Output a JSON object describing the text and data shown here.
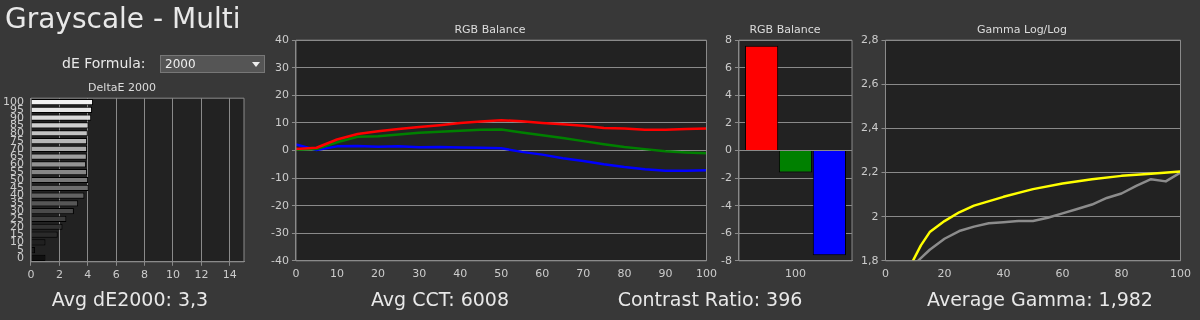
{
  "chart_data": [
    {
      "type": "bar",
      "orientation": "horizontal",
      "title": "DeltaE 2000",
      "annotations": [
        "Grayscale - Multi",
        "dE Formula:",
        "2000",
        "Avg dE2000: 3,3"
      ],
      "categories": [
        "100",
        "95",
        "90",
        "85",
        "80",
        "75",
        "70",
        "65",
        "60",
        "55",
        "50",
        "45",
        "40",
        "35",
        "30",
        "25",
        "20",
        "15",
        "10",
        "5",
        "0"
      ],
      "values": [
        4.37,
        4.3,
        4.24,
        4.05,
        4.0,
        3.95,
        3.95,
        3.93,
        3.88,
        3.95,
        4.02,
        4.05,
        3.76,
        3.32,
        3.02,
        2.49,
        2.22,
        1.88,
        1.02,
        0.29,
        1.02
      ],
      "colors": [
        "#f2f2f2",
        "#e6e6e6",
        "#dadada",
        "#cecece",
        "#c2c2c2",
        "#b6b6b6",
        "#aaaaaa",
        "#9e9e9e",
        "#929292",
        "#868686",
        "#7a7a7a",
        "#6e6e6e",
        "#626262",
        "#565656",
        "#4a4a4a",
        "#3e3e3e",
        "#323232",
        "#2a2a2a",
        "#202020",
        "#181818",
        "#101010"
      ],
      "xlim": [
        0,
        15
      ],
      "xticks": [
        0,
        2,
        4,
        6,
        8,
        10,
        12,
        14
      ],
      "grid": "x",
      "legend": false
    },
    {
      "type": "line",
      "title": "RGB Balance",
      "annotations": [
        "Avg CCT: 6008"
      ],
      "x": [
        0,
        5,
        10,
        15,
        20,
        25,
        30,
        35,
        40,
        45,
        50,
        55,
        60,
        65,
        70,
        75,
        80,
        85,
        90,
        95,
        100
      ],
      "series": [
        {
          "color": "#ff0000",
          "values": [
            0.5,
            1,
            4,
            6,
            7,
            7.8,
            8.5,
            9.2,
            10,
            10.5,
            11,
            10.6,
            10,
            9.5,
            9,
            8.2,
            8,
            7.5,
            7.5,
            7.8,
            8
          ]
        },
        {
          "color": "#008000",
          "values": [
            0.3,
            0.5,
            3,
            5,
            5.2,
            5.8,
            6.4,
            6.8,
            7.2,
            7.5,
            7.6,
            6.5,
            5.5,
            4.5,
            3.4,
            2.3,
            1.3,
            0.5,
            -0.3,
            -0.7,
            -1
          ]
        },
        {
          "color": "#0000ff",
          "values": [
            2.2,
            0.2,
            1.5,
            1.6,
            1.4,
            1.5,
            1.2,
            1.3,
            1.1,
            1,
            0.8,
            -0.5,
            -1.5,
            -2.8,
            -3.8,
            -5,
            -6,
            -6.8,
            -7.3,
            -7.3,
            -7.2
          ]
        }
      ],
      "xlim": [
        0,
        100
      ],
      "xticks": [
        0,
        10,
        20,
        30,
        40,
        50,
        60,
        70,
        80,
        90,
        100
      ],
      "ylim": [
        -40,
        40
      ],
      "yticks": [
        -40,
        -30,
        -20,
        -10,
        0,
        10,
        20,
        30,
        40
      ],
      "grid": "y",
      "legend": false
    },
    {
      "type": "bar",
      "title": "RGB Balance",
      "annotations": [
        "Contrast Ratio: 396"
      ],
      "categories": [
        "100"
      ],
      "series": [
        {
          "color": "#ff0000",
          "values": [
            7.6
          ]
        },
        {
          "color": "#008000",
          "values": [
            -1.6
          ]
        },
        {
          "color": "#0000ff",
          "values": [
            -7.6
          ]
        }
      ],
      "ylim": [
        -8,
        8
      ],
      "yticks": [
        -8,
        -6,
        -4,
        -2,
        0,
        2,
        4,
        6,
        8
      ],
      "grid": "y",
      "legend": false
    },
    {
      "type": "line",
      "title": "Gamma Log/Log",
      "annotations": [
        "Average Gamma: 1,982"
      ],
      "series": [
        {
          "color": "#ffff00",
          "x": [
            9.3,
            12,
            15,
            20,
            25,
            30,
            40,
            50,
            60,
            70,
            80,
            90,
            100
          ],
          "values": [
            1.8,
            1.87,
            1.93,
            1.98,
            2.02,
            2.05,
            2.09,
            2.125,
            2.15,
            2.17,
            2.185,
            2.195,
            2.205
          ]
        },
        {
          "color": "#8c8c8c",
          "x": [
            11,
            15,
            20,
            25,
            30,
            35,
            40,
            45,
            50,
            55,
            60,
            65,
            70,
            75,
            80,
            85,
            90,
            95,
            100
          ],
          "values": [
            1.8,
            1.85,
            1.9,
            1.935,
            1.955,
            1.97,
            1.975,
            1.98,
            1.98,
            1.995,
            2.015,
            2.035,
            2.055,
            2.085,
            2.105,
            2.14,
            2.17,
            2.16,
            2.2
          ]
        }
      ],
      "xlim": [
        0,
        100
      ],
      "xticks": [
        0,
        20,
        40,
        60,
        80,
        100
      ],
      "ylim": [
        1.8,
        2.8
      ],
      "yticks": [
        {
          "value": 1.8,
          "label": "1,8"
        },
        2,
        {
          "value": 2.2,
          "label": "2,2"
        },
        {
          "value": 2.4,
          "label": "2,4"
        },
        {
          "value": 2.6,
          "label": "2,6"
        },
        {
          "value": 2.8,
          "label": "2,8"
        }
      ],
      "grid": "y",
      "legend": false
    }
  ]
}
